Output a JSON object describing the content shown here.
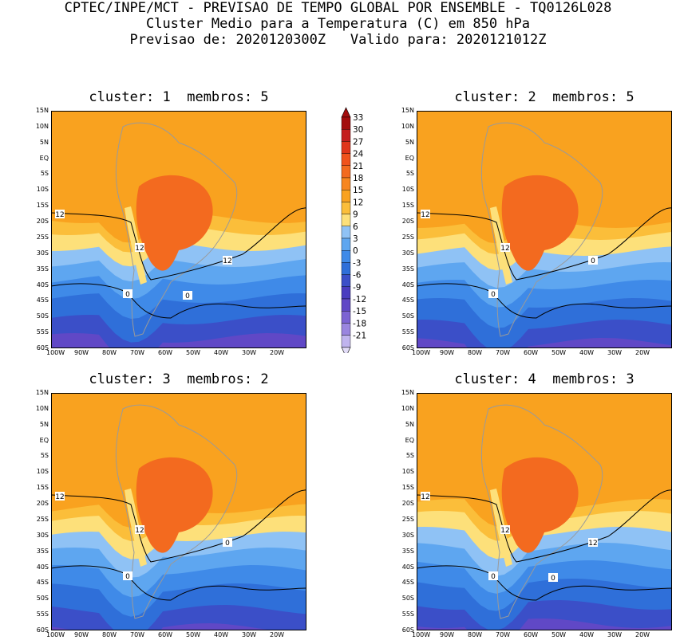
{
  "header": {
    "line1": "CPTEC/INPE/MCT - PREVISAO DE TEMPO GLOBAL POR ENSEMBLE - TQ0126L028",
    "line2": "Cluster Medio para a Temperatura (C) em 850 hPa",
    "line3": "Previsao de: 2020120300Z   Valido para: 2020121012Z"
  },
  "colorbar": {
    "levels": [
      "33",
      "30",
      "27",
      "24",
      "21",
      "18",
      "15",
      "12",
      "9",
      "6",
      "3",
      "0",
      "-3",
      "-6",
      "-9",
      "-12",
      "-15",
      "-18",
      "-21"
    ],
    "colors": [
      "#a30d0d",
      "#c41e1e",
      "#e0351a",
      "#f0521c",
      "#f36a1f",
      "#f7861f",
      "#f9a21f",
      "#fbbe3a",
      "#fde07a",
      "#8fc2f5",
      "#5ea6f0",
      "#3f8ae8",
      "#2f6fd9",
      "#3b4fc8",
      "#4a3cc0",
      "#6048c6",
      "#7c63d3",
      "#9a85df",
      "#c0b4ee"
    ]
  },
  "axes": {
    "y_ticks": [
      "15N",
      "10N",
      "5N",
      "EQ",
      "5S",
      "10S",
      "15S",
      "20S",
      "25S",
      "30S",
      "35S",
      "40S",
      "45S",
      "50S",
      "55S",
      "60S"
    ],
    "x_ticks": [
      "100W",
      "90W",
      "80W",
      "70W",
      "60W",
      "50W",
      "40W",
      "30W",
      "20W"
    ]
  },
  "chart_data": [
    {
      "type": "heatmap",
      "title": "cluster: 1  membros: 5",
      "cluster": 1,
      "membros": 5,
      "contour_labels": [
        "12",
        "12",
        "12",
        "0",
        "0"
      ],
      "xlim": [
        "100W",
        "15W"
      ],
      "ylim": [
        "60S",
        "15N"
      ]
    },
    {
      "type": "heatmap",
      "title": "cluster: 2  membros: 5",
      "cluster": 2,
      "membros": 5,
      "contour_labels": [
        "12",
        "12",
        "0",
        "0"
      ],
      "xlim": [
        "100W",
        "15W"
      ],
      "ylim": [
        "60S",
        "15N"
      ]
    },
    {
      "type": "heatmap",
      "title": "cluster: 3  membros: 2",
      "cluster": 3,
      "membros": 2,
      "contour_labels": [
        "12",
        "12",
        "0",
        "0"
      ],
      "xlim": [
        "100W",
        "15W"
      ],
      "ylim": [
        "60S",
        "15N"
      ]
    },
    {
      "type": "heatmap",
      "title": "cluster: 4  membros: 3",
      "cluster": 4,
      "membros": 3,
      "contour_labels": [
        "12",
        "12",
        "12",
        "0",
        "0"
      ],
      "xlim": [
        "100W",
        "15W"
      ],
      "ylim": [
        "60S",
        "15N"
      ]
    }
  ]
}
